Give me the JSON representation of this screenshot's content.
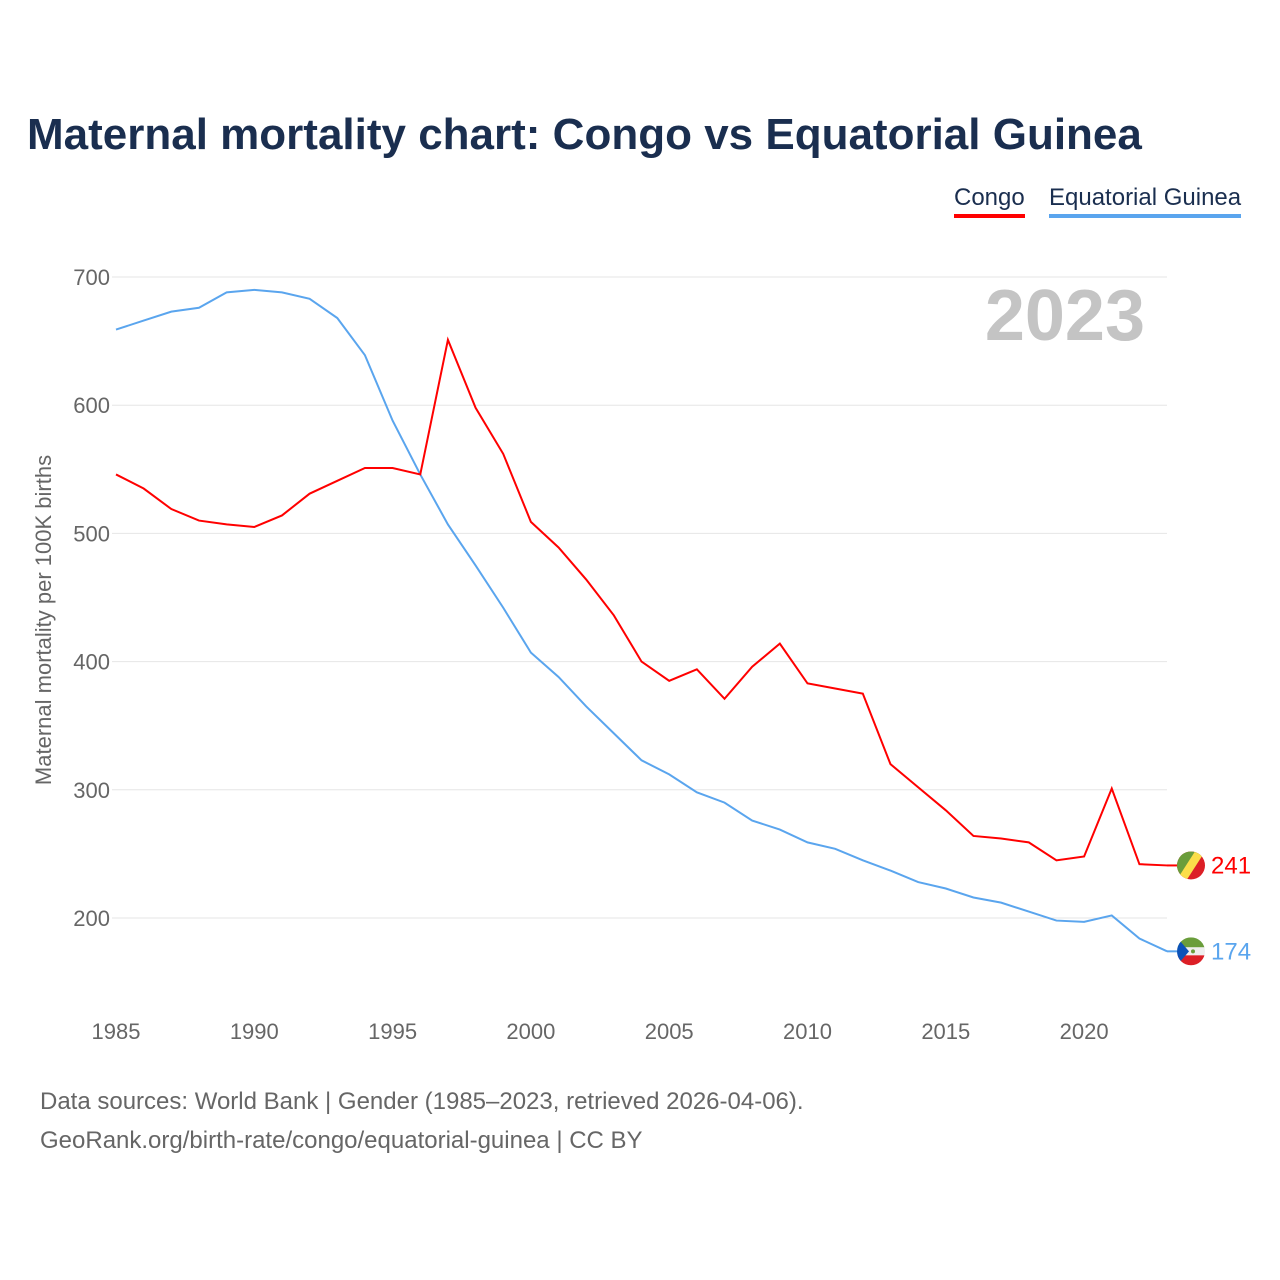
{
  "title": "Maternal mortality chart: Congo vs Equatorial Guinea",
  "source_line1": "Data sources: World Bank | Gender (1985–2023, retrieved 2026-04-06).",
  "source_line2": "GeoRank.org/birth-rate/congo/equatorial-guinea | CC BY",
  "chart_data": {
    "type": "line",
    "title": "Maternal mortality chart: Congo vs Equatorial Guinea",
    "ylabel": "Maternal mortality per 100K births",
    "xlabel": "",
    "year_label": "2023",
    "ylim": [
      130,
      700
    ],
    "xlim": [
      1985,
      2023
    ],
    "yticks": [
      200,
      300,
      400,
      500,
      600,
      700
    ],
    "xticks": [
      1985,
      1990,
      1995,
      2000,
      2005,
      2010,
      2015,
      2020
    ],
    "grid": true,
    "legend_position": "top-right",
    "x": [
      1985,
      1986,
      1987,
      1988,
      1989,
      1990,
      1991,
      1992,
      1993,
      1994,
      1995,
      1996,
      1997,
      1998,
      1999,
      2000,
      2001,
      2002,
      2003,
      2004,
      2005,
      2006,
      2007,
      2008,
      2009,
      2010,
      2011,
      2012,
      2013,
      2014,
      2015,
      2016,
      2017,
      2018,
      2019,
      2020,
      2021,
      2022,
      2023
    ],
    "series": [
      {
        "name": "Congo",
        "color": "#ff0000",
        "end_label": "241",
        "flag": "congo-flag",
        "values": [
          546,
          535,
          519,
          510,
          507,
          505,
          514,
          531,
          541,
          551,
          551,
          546,
          651,
          598,
          562,
          509,
          489,
          464,
          436,
          400,
          385,
          394,
          371,
          396,
          414,
          383,
          379,
          375,
          320,
          302,
          284,
          264,
          262,
          259,
          245,
          248,
          301,
          242,
          241
        ]
      },
      {
        "name": "Equatorial Guinea",
        "color": "#5aa5ee",
        "end_label": "174",
        "flag": "equatorial-guinea-flag",
        "values": [
          659,
          666,
          673,
          676,
          688,
          690,
          688,
          683,
          668,
          639,
          588,
          546,
          507,
          475,
          442,
          407,
          388,
          365,
          344,
          323,
          312,
          298,
          290,
          276,
          269,
          259,
          254,
          245,
          237,
          228,
          223,
          216,
          212,
          205,
          198,
          197,
          202,
          184,
          174
        ]
      }
    ]
  }
}
